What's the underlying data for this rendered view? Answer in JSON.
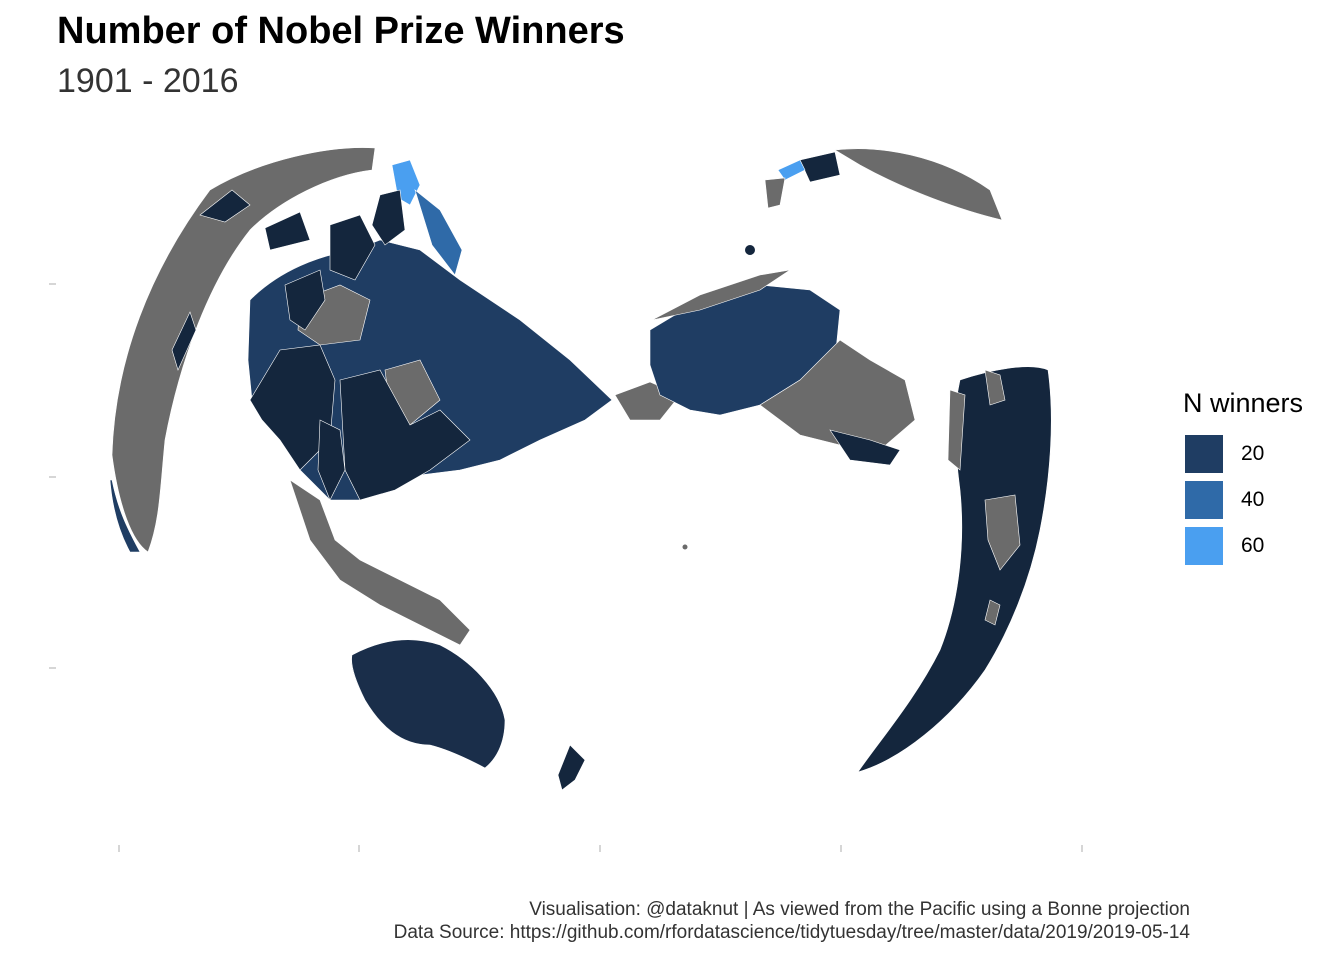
{
  "title": "Number of Nobel Prize Winners",
  "subtitle": "1901 - 2016",
  "legend": {
    "title": "N winners",
    "items": [
      {
        "label": "20",
        "color": "#1f3d63"
      },
      {
        "label": "40",
        "color": "#2f6aa8"
      },
      {
        "label": "60",
        "color": "#4a9ff0"
      }
    ]
  },
  "caption": {
    "line1": "Visualisation: @dataknut | As viewed from the Pacific using a Bonne projection",
    "line2": "Data Source: https://github.com/rfordatascience/tidytuesday/tree/master/data/2019/2019-05-14"
  },
  "colors": {
    "no_data": "#6b6b6b",
    "low": "#14263d",
    "mid": "#1f3d63",
    "high": "#2f6aa8",
    "top": "#4a9ff0",
    "background": "#ffffff"
  },
  "projection": "Bonne"
}
